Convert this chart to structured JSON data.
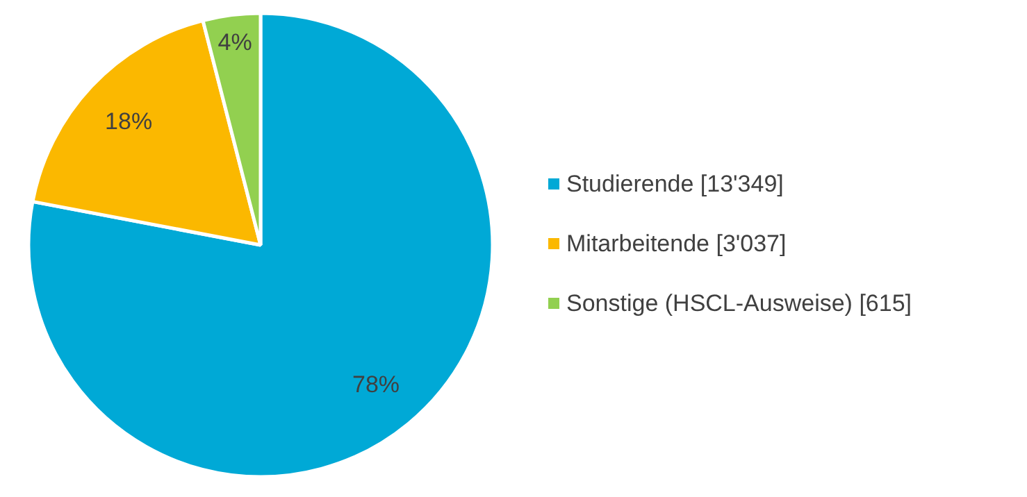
{
  "chart_data": {
    "type": "pie",
    "categories": [
      "Studierende [13'349]",
      "Mitarbeitende [3'037]",
      "Sonstige (HSCL-Ausweise) [615]"
    ],
    "values": [
      78,
      18,
      4
    ],
    "colors": [
      "#00a9d6",
      "#fbb800",
      "#92d050"
    ],
    "value_labels": [
      "78%",
      "18%",
      "4%"
    ],
    "legend": "right"
  }
}
